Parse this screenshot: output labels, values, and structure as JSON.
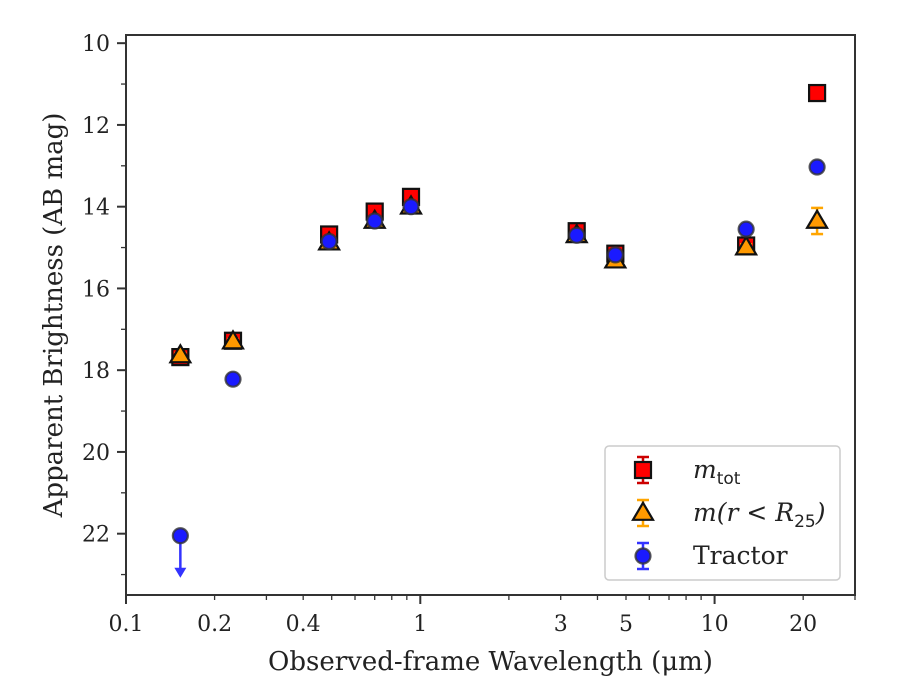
{
  "chart_data": {
    "type": "scatter",
    "title": "",
    "xlabel": "Observed-frame Wavelength (μm)",
    "ylabel": "Apparent Brightness (AB mag)",
    "xscale": "log",
    "xlim": [
      0.1,
      30
    ],
    "ylim": [
      23.5,
      9.8
    ],
    "y_inverted": true,
    "x_ticks": [
      {
        "value": 0.1,
        "label": "0.1"
      },
      {
        "value": 0.2,
        "label": "0.2"
      },
      {
        "value": 0.4,
        "label": "0.4"
      },
      {
        "value": 1,
        "label": "1"
      },
      {
        "value": 3,
        "label": "3"
      },
      {
        "value": 5,
        "label": "5"
      },
      {
        "value": 10,
        "label": "10"
      },
      {
        "value": 20,
        "label": "20"
      }
    ],
    "y_ticks": [
      {
        "value": 10,
        "label": "10"
      },
      {
        "value": 12,
        "label": "12"
      },
      {
        "value": 14,
        "label": "14"
      },
      {
        "value": 16,
        "label": "16"
      },
      {
        "value": 18,
        "label": "18"
      },
      {
        "value": 20,
        "label": "20"
      },
      {
        "value": 22,
        "label": "22"
      }
    ],
    "legend_position": "lower right",
    "series": [
      {
        "name": "m_tot",
        "legend_main": "m",
        "legend_sub": "tot",
        "marker": "square",
        "color": "#ff0000",
        "errcolor": "#cc0000",
        "points": [
          {
            "x": 0.153,
            "y": 17.68,
            "err": 0.08
          },
          {
            "x": 0.231,
            "y": 17.28,
            "err": 0.08
          },
          {
            "x": 0.49,
            "y": 14.68,
            "err": 0.12
          },
          {
            "x": 0.7,
            "y": 14.12,
            "err": 0.12
          },
          {
            "x": 0.93,
            "y": 13.76,
            "err": 0.12
          },
          {
            "x": 3.4,
            "y": 14.6,
            "err": 0.08
          },
          {
            "x": 4.6,
            "y": 15.15,
            "err": 0.08
          },
          {
            "x": 12.8,
            "y": 14.95,
            "err": 0.08
          },
          {
            "x": 22.3,
            "y": 11.22,
            "err": 0.06
          }
        ]
      },
      {
        "name": "m(r < R_25)",
        "legend_main": "m(r < R",
        "legend_sub": "25",
        "legend_tail": ")",
        "marker": "triangle",
        "color": "#ff9900",
        "errcolor": "#ffa500",
        "points": [
          {
            "x": 0.153,
            "y": 17.64,
            "err": 0.06
          },
          {
            "x": 0.231,
            "y": 17.3,
            "err": 0.06
          },
          {
            "x": 0.49,
            "y": 14.88,
            "err": 0.08
          },
          {
            "x": 0.7,
            "y": 14.35,
            "err": 0.08
          },
          {
            "x": 0.93,
            "y": 14.0,
            "err": 0.08
          },
          {
            "x": 3.4,
            "y": 14.7,
            "err": 0.08
          },
          {
            "x": 4.6,
            "y": 15.32,
            "err": 0.08
          },
          {
            "x": 12.8,
            "y": 15.0,
            "err": 0.08
          },
          {
            "x": 22.3,
            "y": 14.35,
            "err": 0.32
          }
        ]
      },
      {
        "name": "Tractor",
        "legend_main": "Tractor",
        "marker": "circle",
        "color": "#1a1aff",
        "errcolor": "#3333ff",
        "points": [
          {
            "x": 0.153,
            "y": 22.05,
            "err": 0,
            "upper_limit": true
          },
          {
            "x": 0.231,
            "y": 18.22,
            "err": 0.05
          },
          {
            "x": 0.49,
            "y": 14.85,
            "err": 0.05
          },
          {
            "x": 0.7,
            "y": 14.35,
            "err": 0.05
          },
          {
            "x": 0.93,
            "y": 14.0,
            "err": 0.05
          },
          {
            "x": 3.4,
            "y": 14.7,
            "err": 0.05
          },
          {
            "x": 4.6,
            "y": 15.18,
            "err": 0.05
          },
          {
            "x": 12.8,
            "y": 14.55,
            "err": 0.05
          },
          {
            "x": 22.3,
            "y": 13.03,
            "err": 0.05
          }
        ]
      }
    ]
  }
}
